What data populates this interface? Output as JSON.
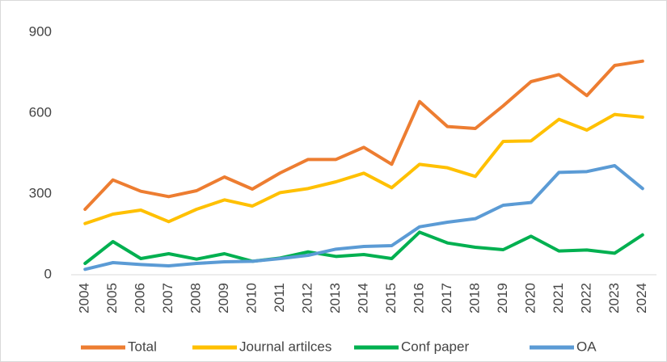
{
  "chart_data": {
    "type": "line",
    "categories": [
      "2004",
      "2005",
      "2006",
      "2007",
      "2008",
      "2009",
      "2010",
      "2011",
      "2012",
      "2013",
      "2014",
      "2015",
      "2016",
      "2017",
      "2018",
      "2019",
      "2020",
      "2021",
      "2022",
      "2023",
      "2024"
    ],
    "series": [
      {
        "name": "Total",
        "color": "#ed7d31",
        "values": [
          243,
          352,
          310,
          290,
          312,
          363,
          318,
          378,
          428,
          428,
          473,
          410,
          643,
          550,
          543,
          627,
          717,
          743,
          665,
          777,
          793
        ]
      },
      {
        "name": "Journal artilces",
        "color": "#ffc000",
        "values": [
          190,
          225,
          240,
          197,
          243,
          278,
          255,
          305,
          320,
          345,
          377,
          323,
          410,
          397,
          365,
          495,
          497,
          577,
          537,
          595,
          585
        ]
      },
      {
        "name": "Conf paper",
        "color": "#00b050",
        "values": [
          42,
          123,
          60,
          78,
          58,
          78,
          50,
          62,
          85,
          68,
          75,
          60,
          158,
          118,
          102,
          93,
          143,
          88,
          92,
          80,
          148
        ]
      },
      {
        "name": "OA",
        "color": "#5b9bd5",
        "values": [
          20,
          45,
          38,
          33,
          42,
          48,
          50,
          60,
          72,
          95,
          105,
          108,
          178,
          195,
          208,
          258,
          268,
          380,
          383,
          405,
          320
        ]
      }
    ],
    "ylim": [
      0,
      900
    ],
    "yticks": [
      0,
      300,
      600,
      900
    ],
    "grid": false,
    "legend": "bottom"
  }
}
